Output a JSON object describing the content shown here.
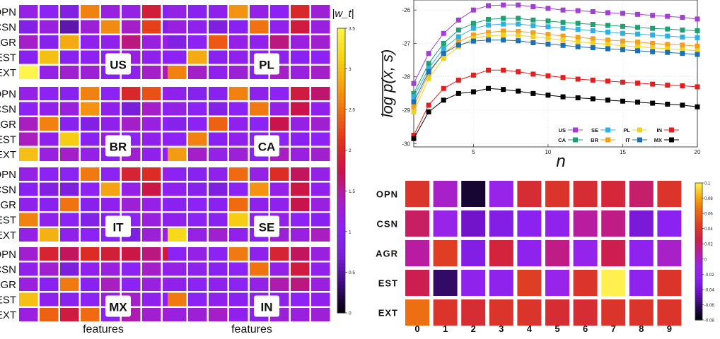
{
  "chart_data": [
    {
      "type": "heatmap",
      "title": "",
      "rows": [
        "OPN",
        "CSN",
        "AGR",
        "EST",
        "EXT"
      ],
      "columns": 8,
      "xlabel": "features",
      "colorbar": {
        "label": "|w_t|",
        "min": 0,
        "max": 3.5,
        "ticks": [
          "0",
          "0.5",
          "1",
          "1.5",
          "2",
          "2.5",
          "3",
          "3.5"
        ]
      },
      "colormap": [
        "#000000",
        "#3a0a78",
        "#7a1fd8",
        "#8c22f4",
        "#a81ec0",
        "#c8134c",
        "#e0301f",
        "#ef6a10",
        "#f4a312",
        "#f6d414",
        "#fff44a"
      ],
      "panels": [
        {
          "label": "US",
          "values": [
            [
              1.15,
              1.05,
              0.85,
              2.6,
              1.2,
              1.15,
              1.9,
              0.95
            ],
            [
              0.9,
              1.2,
              0.55,
              1.25,
              2.65,
              1.35,
              2.2,
              0.85
            ],
            [
              1.35,
              0.95,
              2.85,
              1.1,
              1.1,
              1.6,
              1.2,
              1.2
            ],
            [
              1.0,
              3.0,
              1.0,
              1.05,
              1.05,
              1.2,
              1.1,
              1.1
            ],
            [
              3.5,
              1.15,
              1.3,
              1.25,
              0.95,
              1.1,
              1.35,
              1.45
            ]
          ]
        },
        {
          "label": "PL",
          "values": [
            [
              1.15,
              1.0,
              1.1,
              2.7,
              1.15,
              1.05,
              2.0,
              1.25
            ],
            [
              1.2,
              1.1,
              0.8,
              1.0,
              2.5,
              1.1,
              1.85,
              1.2
            ],
            [
              0.85,
              1.05,
              2.35,
              1.15,
              1.1,
              1.6,
              1.2,
              1.3
            ],
            [
              1.05,
              2.85,
              1.0,
              1.1,
              1.05,
              1.1,
              1.0,
              1.05
            ],
            [
              2.6,
              1.35,
              1.1,
              1.25,
              1.0,
              1.35,
              1.2,
              1.35
            ]
          ]
        },
        {
          "label": "BR",
          "values": [
            [
              1.15,
              1.05,
              1.0,
              2.6,
              1.05,
              2.0,
              2.3,
              1.15
            ],
            [
              1.05,
              1.1,
              1.2,
              2.7,
              1.1,
              0.7,
              1.35,
              1.0
            ],
            [
              1.4,
              2.6,
              1.0,
              0.85,
              1.1,
              1.35,
              1.2,
              1.05
            ],
            [
              1.4,
              1.1,
              3.1,
              1.0,
              1.2,
              1.05,
              1.1,
              1.1
            ],
            [
              3.0,
              1.2,
              1.35,
              1.15,
              1.0,
              1.3,
              1.1,
              1.1
            ]
          ]
        },
        {
          "label": "CA",
          "values": [
            [
              1.1,
              0.95,
              1.0,
              2.6,
              1.1,
              1.05,
              1.85,
              1.65
            ],
            [
              1.15,
              1.05,
              0.9,
              1.05,
              2.55,
              1.15,
              1.75,
              1.1
            ],
            [
              0.95,
              1.05,
              2.4,
              1.1,
              1.05,
              1.75,
              1.15,
              1.3
            ],
            [
              1.05,
              2.6,
              1.0,
              1.1,
              1.05,
              1.05,
              1.0,
              1.05
            ],
            [
              2.75,
              1.35,
              1.15,
              1.25,
              1.0,
              1.4,
              1.2,
              1.3
            ]
          ]
        },
        {
          "label": "IT",
          "values": [
            [
              1.15,
              1.05,
              1.05,
              2.55,
              1.05,
              1.95,
              2.05,
              1.2
            ],
            [
              1.0,
              0.85,
              0.8,
              1.05,
              2.8,
              1.15,
              1.8,
              1.05
            ],
            [
              1.1,
              1.0,
              2.5,
              0.95,
              1.1,
              1.25,
              1.15,
              1.05
            ],
            [
              2.6,
              1.1,
              1.05,
              0.9,
              1.0,
              1.05,
              1.2,
              1.0
            ],
            [
              1.15,
              2.9,
              1.1,
              1.05,
              1.0,
              0.8,
              1.25,
              1.25
            ]
          ]
        },
        {
          "label": "SE",
          "values": [
            [
              1.05,
              1.0,
              1.1,
              2.45,
              1.15,
              2.05,
              1.7,
              1.15
            ],
            [
              1.1,
              0.95,
              0.8,
              1.05,
              2.7,
              1.15,
              1.8,
              1.1
            ],
            [
              1.0,
              1.05,
              1.0,
              2.45,
              1.1,
              1.1,
              1.75,
              1.2
            ],
            [
              1.1,
              1.05,
              1.0,
              3.1,
              1.05,
              1.15,
              1.05,
              1.0
            ],
            [
              3.2,
              1.15,
              1.3,
              1.1,
              1.0,
              1.25,
              1.2,
              1.4
            ]
          ]
        },
        {
          "label": "MX",
          "values": [
            [
              1.3,
              1.95,
              1.7,
              2.05,
              1.9,
              1.8,
              1.6,
              1.85
            ],
            [
              1.1,
              1.3,
              0.75,
              1.1,
              1.2,
              1.05,
              1.35,
              1.1
            ],
            [
              1.2,
              1.0,
              2.55,
              1.0,
              1.4,
              1.05,
              1.2,
              1.15
            ],
            [
              3.0,
              1.1,
              1.0,
              1.05,
              1.2,
              1.35,
              1.1,
              1.05
            ],
            [
              1.2,
              2.4,
              1.85,
              2.45,
              1.05,
              1.45,
              1.3,
              1.3
            ]
          ]
        },
        {
          "label": "IN",
          "values": [
            [
              1.05,
              1.15,
              1.05,
              2.55,
              1.1,
              1.95,
              1.7,
              1.2
            ],
            [
              1.15,
              1.1,
              1.0,
              1.05,
              2.5,
              1.15,
              1.85,
              1.1
            ],
            [
              1.1,
              1.05,
              1.1,
              1.05,
              1.15,
              1.45,
              1.6,
              1.2
            ],
            [
              2.55,
              1.05,
              1.1,
              1.0,
              1.1,
              1.1,
              1.05,
              1.1
            ],
            [
              1.2,
              1.25,
              1.35,
              1.1,
              1.0,
              1.25,
              1.2,
              1.25
            ]
          ]
        }
      ]
    },
    {
      "type": "line",
      "title": "",
      "xlabel": "n",
      "ylabel": "log p(x, s)",
      "xlim": [
        1,
        20
      ],
      "ylim": [
        -30.1,
        -25.7
      ],
      "xticks": [
        5,
        10,
        15,
        20
      ],
      "yticks": [
        -30,
        -29,
        -28,
        -27,
        -26
      ],
      "x": [
        1,
        2,
        3,
        4,
        5,
        6,
        7,
        8,
        9,
        10,
        11,
        12,
        13,
        14,
        15,
        16,
        17,
        18,
        19,
        20
      ],
      "legend_position": "bottom-right",
      "series": [
        {
          "name": "US",
          "color": "#a040d0",
          "values": [
            -28.2,
            -27.3,
            -26.7,
            -26.3,
            -26.0,
            -25.87,
            -25.85,
            -25.85,
            -25.9,
            -25.95,
            -26.0,
            -26.02,
            -26.05,
            -26.08,
            -26.1,
            -26.13,
            -26.16,
            -26.19,
            -26.22,
            -26.27
          ]
        },
        {
          "name": "CA",
          "color": "#20a070",
          "values": [
            -28.5,
            -27.6,
            -27.0,
            -26.6,
            -26.4,
            -26.28,
            -26.25,
            -26.25,
            -26.3,
            -26.33,
            -26.37,
            -26.4,
            -26.43,
            -26.46,
            -26.49,
            -26.52,
            -26.55,
            -26.57,
            -26.6,
            -26.62
          ]
        },
        {
          "name": "SE",
          "color": "#30b0e0",
          "values": [
            -28.6,
            -27.75,
            -27.15,
            -26.8,
            -26.55,
            -26.45,
            -26.42,
            -26.42,
            -26.47,
            -26.5,
            -26.55,
            -26.58,
            -26.62,
            -26.66,
            -26.7,
            -26.72,
            -26.75,
            -26.78,
            -26.81,
            -26.83
          ]
        },
        {
          "name": "BR",
          "color": "#f0a020",
          "values": [
            -28.9,
            -27.9,
            -27.3,
            -26.95,
            -26.75,
            -26.67,
            -26.63,
            -26.64,
            -26.68,
            -26.73,
            -26.78,
            -26.82,
            -26.86,
            -26.9,
            -26.93,
            -26.96,
            -27.0,
            -27.03,
            -27.05,
            -27.08
          ]
        },
        {
          "name": "PL",
          "color": "#f0d020",
          "values": [
            -29.05,
            -28.05,
            -27.45,
            -27.1,
            -26.85,
            -26.77,
            -26.75,
            -26.76,
            -26.8,
            -26.85,
            -26.9,
            -26.95,
            -26.99,
            -27.03,
            -27.07,
            -27.1,
            -27.13,
            -27.16,
            -27.19,
            -27.22
          ]
        },
        {
          "name": "IT",
          "color": "#1a70b0",
          "values": [
            -28.75,
            -27.85,
            -27.3,
            -27.05,
            -26.93,
            -26.9,
            -26.9,
            -26.92,
            -26.98,
            -27.02,
            -27.06,
            -27.1,
            -27.13,
            -27.16,
            -27.19,
            -27.22,
            -27.25,
            -27.27,
            -27.3,
            -27.33
          ]
        },
        {
          "name": "IN",
          "color": "#e02020",
          "values": [
            -29.75,
            -28.85,
            -28.35,
            -28.1,
            -27.95,
            -27.8,
            -27.8,
            -27.85,
            -27.92,
            -27.97,
            -28.02,
            -28.07,
            -28.1,
            -28.13,
            -28.16,
            -28.19,
            -28.22,
            -28.25,
            -28.27,
            -28.3
          ]
        },
        {
          "name": "MX",
          "color": "#000000",
          "values": [
            -29.85,
            -29.05,
            -28.7,
            -28.5,
            -28.45,
            -28.35,
            -28.38,
            -28.43,
            -28.5,
            -28.55,
            -28.6,
            -28.63,
            -28.66,
            -28.7,
            -28.73,
            -28.76,
            -28.79,
            -28.82,
            -28.85,
            -28.9
          ]
        }
      ]
    },
    {
      "type": "heatmap",
      "title": "",
      "rows": [
        "OPN",
        "CSN",
        "AGR",
        "EST",
        "EXT"
      ],
      "columns": [
        "0",
        "1",
        "2",
        "3",
        "4",
        "5",
        "6",
        "7",
        "8",
        "9"
      ],
      "colorbar": {
        "min": -0.08,
        "max": 0.1,
        "ticks": [
          "0.1",
          "0.08",
          "0.06",
          "0.04",
          "0.02",
          "0",
          "-0.02",
          "-0.04",
          "-0.06",
          "-0.08"
        ]
      },
      "colormap": [
        "#000000",
        "#2a0a5a",
        "#6a10c0",
        "#8a22f0",
        "#9a24e8",
        "#b81ca0",
        "#d02040",
        "#e04020",
        "#ee6a12",
        "#f6aa10",
        "#fff050"
      ],
      "values": [
        [
          0.04,
          -0.0,
          -0.07,
          -0.01,
          0.035,
          0.04,
          0.035,
          0.032,
          0.02,
          0.04
        ],
        [
          0.022,
          -0.01,
          -0.04,
          -0.03,
          -0.025,
          -0.02,
          0.01,
          0.015,
          -0.035,
          -0.025
        ],
        [
          0.01,
          0.045,
          -0.03,
          0.03,
          -0.02,
          0.015,
          -0.015,
          0.025,
          -0.02,
          0.0
        ],
        [
          0.025,
          -0.06,
          -0.02,
          -0.02,
          0.045,
          -0.01,
          0.04,
          0.1,
          -0.02,
          0.04
        ],
        [
          0.065,
          0.04,
          0.035,
          0.04,
          0.04,
          0.035,
          0.035,
          0.04,
          0.04,
          0.04
        ]
      ]
    }
  ]
}
